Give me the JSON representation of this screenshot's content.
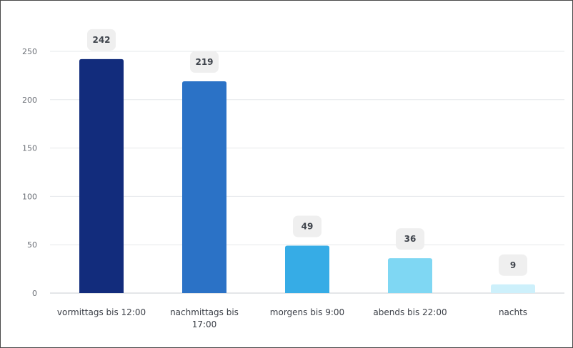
{
  "chart_data": {
    "type": "bar",
    "title": "",
    "xlabel": "",
    "ylabel": "",
    "ylim": [
      0,
      250
    ],
    "yticks": [
      0,
      50,
      100,
      150,
      200,
      250
    ],
    "grid": true,
    "legend": "none",
    "categories": [
      [
        "vormittags bis 12:00"
      ],
      [
        "nachmittags bis",
        "17:00"
      ],
      [
        "morgens bis 9:00"
      ],
      [
        "abends bis 22:00"
      ],
      [
        "nachts"
      ]
    ],
    "values": [
      242,
      219,
      49,
      36,
      9
    ],
    "colors": [
      "#122c7c",
      "#2b72c6",
      "#36ace6",
      "#7fd7f3",
      "#cdf0fb"
    ]
  }
}
